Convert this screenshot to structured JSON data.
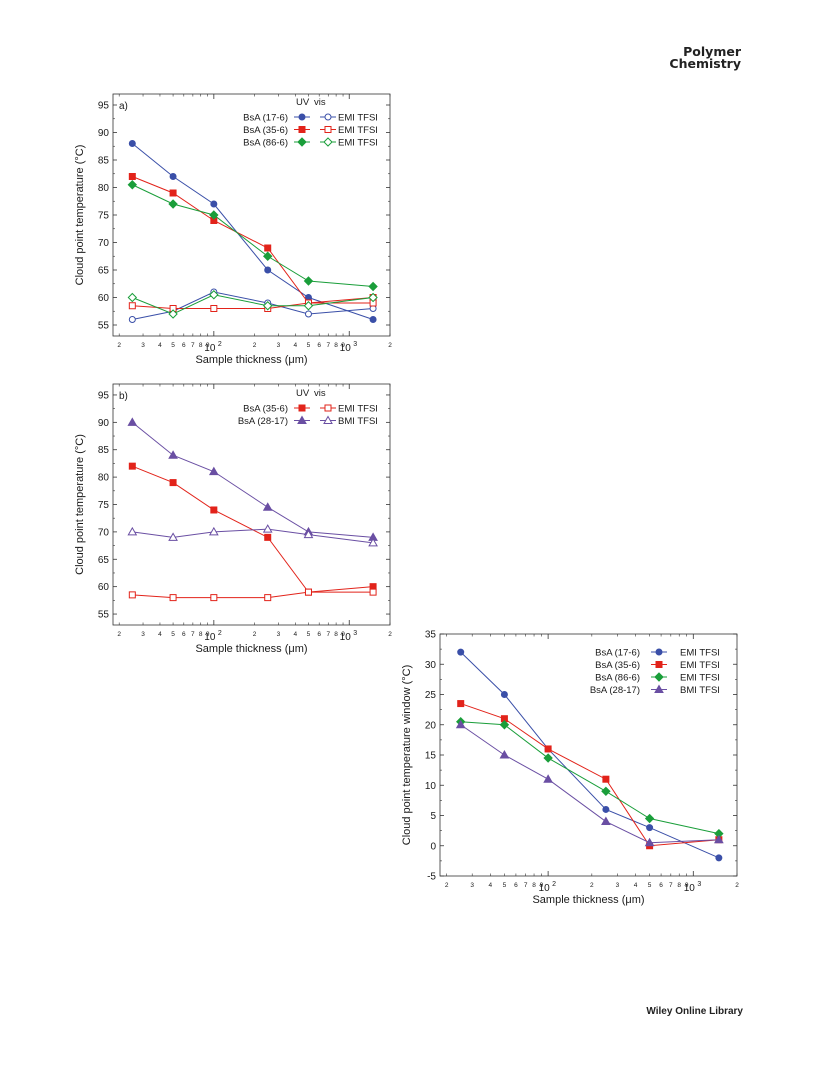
{
  "journal": {
    "line1": "Polymer",
    "line2": "Chemistry"
  },
  "footer": {
    "text": "Wiley Online Library"
  },
  "chart_data": [
    {
      "panel": "a)",
      "type": "line",
      "xscale": "log",
      "xlim": [
        18,
        2000
      ],
      "ylim": [
        53,
        97
      ],
      "xlabel": "Sample thickness (μm)",
      "ylabel": "Cloud point temperature (°C)",
      "yticks": [
        55,
        60,
        65,
        70,
        75,
        80,
        85,
        90,
        95
      ],
      "legend_header": {
        "uv": "UV",
        "vis": "vis"
      },
      "legend_placement": "top-right",
      "grid": false,
      "series": [
        {
          "label": "BsA (17-6)",
          "group": "EMI TFSI",
          "mode": "UV",
          "color": "#3a4fa8",
          "marker": "circle",
          "filled": true,
          "x": [
            25,
            50,
            100,
            250,
            500,
            1500
          ],
          "y": [
            88,
            82,
            77,
            65,
            60,
            56
          ]
        },
        {
          "label": "BsA (35-6)",
          "group": "EMI TFSI",
          "mode": "UV",
          "color": "#e2231a",
          "marker": "square",
          "filled": true,
          "x": [
            25,
            50,
            100,
            250,
            500,
            1500
          ],
          "y": [
            82,
            79,
            74,
            69,
            59,
            60
          ]
        },
        {
          "label": "BsA (86-6)",
          "group": "EMI TFSI",
          "mode": "UV",
          "color": "#1a9e3a",
          "marker": "diamond",
          "filled": true,
          "x": [
            25,
            50,
            100,
            250,
            500,
            1500
          ],
          "y": [
            80.5,
            77,
            75,
            67.5,
            63,
            62
          ]
        },
        {
          "label": "BsA (17-6)",
          "group": "EMI TFSI",
          "mode": "vis",
          "color": "#3a4fa8",
          "marker": "circle",
          "filled": false,
          "x": [
            25,
            50,
            100,
            250,
            500,
            1500
          ],
          "y": [
            56,
            57.5,
            61,
            59,
            57,
            58
          ]
        },
        {
          "label": "BsA (35-6)",
          "group": "EMI TFSI",
          "mode": "vis",
          "color": "#e2231a",
          "marker": "square",
          "filled": false,
          "x": [
            25,
            50,
            100,
            250,
            500,
            1500
          ],
          "y": [
            58.5,
            58,
            58,
            58,
            59,
            59
          ]
        },
        {
          "label": "BsA (86-6)",
          "group": "EMI TFSI",
          "mode": "vis",
          "color": "#1a9e3a",
          "marker": "diamond",
          "filled": false,
          "x": [
            25,
            50,
            100,
            250,
            500,
            1500
          ],
          "y": [
            60,
            57,
            60.5,
            58.5,
            58.5,
            60
          ]
        }
      ]
    },
    {
      "panel": "b)",
      "type": "line",
      "xscale": "log",
      "xlim": [
        18,
        2000
      ],
      "ylim": [
        53,
        97
      ],
      "xlabel": "Sample thickness (μm)",
      "ylabel": "Cloud point temperature (°C)",
      "yticks": [
        55,
        60,
        65,
        70,
        75,
        80,
        85,
        90,
        95
      ],
      "legend_header": {
        "uv": "UV",
        "vis": "vis"
      },
      "legend_placement": "top-right",
      "grid": false,
      "series": [
        {
          "label": "BsA (35-6)",
          "group": "EMI TFSI",
          "mode": "UV",
          "color": "#e2231a",
          "marker": "square",
          "filled": true,
          "x": [
            25,
            50,
            100,
            250,
            500,
            1500
          ],
          "y": [
            82,
            79,
            74,
            69,
            59,
            60
          ]
        },
        {
          "label": "BsA (28-17)",
          "group": "BMI TFSI",
          "mode": "UV",
          "color": "#6a4fa3",
          "marker": "triangle",
          "filled": true,
          "x": [
            25,
            50,
            100,
            250,
            500,
            1500
          ],
          "y": [
            90,
            84,
            81,
            74.5,
            70,
            69
          ]
        },
        {
          "label": "BsA (35-6)",
          "group": "EMI TFSI",
          "mode": "vis",
          "color": "#e2231a",
          "marker": "square",
          "filled": false,
          "x": [
            25,
            50,
            100,
            250,
            500,
            1500
          ],
          "y": [
            58.5,
            58,
            58,
            58,
            59,
            59
          ]
        },
        {
          "label": "BsA (28-17)",
          "group": "BMI TFSI",
          "mode": "vis",
          "color": "#6a4fa3",
          "marker": "triangle",
          "filled": false,
          "x": [
            25,
            50,
            100,
            250,
            500,
            1500
          ],
          "y": [
            70,
            69,
            70,
            70.5,
            69.5,
            68
          ]
        }
      ]
    },
    {
      "panel": "",
      "type": "line",
      "xscale": "log",
      "xlim": [
        18,
        2000
      ],
      "ylim": [
        -5,
        35
      ],
      "xlabel": "Sample thickness (μm)",
      "ylabel": "Cloud point temperature window (°C)",
      "yticks": [
        -5,
        0,
        5,
        10,
        15,
        20,
        25,
        30,
        35
      ],
      "legend_placement": "top-right",
      "grid": false,
      "series": [
        {
          "label": "BsA (17-6)",
          "group": "EMI TFSI",
          "color": "#3a4fa8",
          "marker": "circle",
          "filled": true,
          "x": [
            25,
            50,
            100,
            250,
            500,
            1500
          ],
          "y": [
            32,
            25,
            16,
            6,
            3,
            -2
          ]
        },
        {
          "label": "BsA (35-6)",
          "group": "EMI TFSI",
          "color": "#e2231a",
          "marker": "square",
          "filled": true,
          "x": [
            25,
            50,
            100,
            250,
            500,
            1500
          ],
          "y": [
            23.5,
            21,
            16,
            11,
            0,
            1
          ]
        },
        {
          "label": "BsA (86-6)",
          "group": "EMI TFSI",
          "color": "#1a9e3a",
          "marker": "diamond",
          "filled": true,
          "x": [
            25,
            50,
            100,
            250,
            500,
            1500
          ],
          "y": [
            20.5,
            20,
            14.5,
            9,
            4.5,
            2
          ]
        },
        {
          "label": "BsA (28-17)",
          "group": "BMI TFSI",
          "color": "#6a4fa3",
          "marker": "triangle",
          "filled": true,
          "x": [
            25,
            50,
            100,
            250,
            500,
            1500
          ],
          "y": [
            20,
            15,
            11,
            4,
            0.5,
            1
          ]
        }
      ]
    }
  ]
}
